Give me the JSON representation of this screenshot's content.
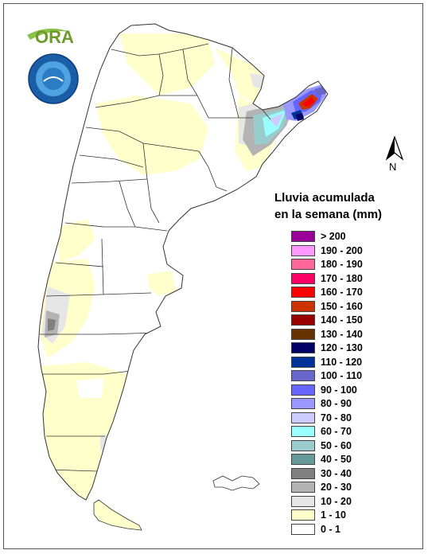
{
  "logos": {
    "ora_text": "ORA"
  },
  "north_label": "N",
  "legend": {
    "title_line1": "Lluvia acumulada",
    "title_line2": "en la semana (mm)",
    "classes": [
      {
        "label": "> 200",
        "color": "#990099"
      },
      {
        "label": "190 - 200",
        "color": "#ff99ff"
      },
      {
        "label": "180 - 190",
        "color": "#ff6699"
      },
      {
        "label": "170 - 180",
        "color": "#ff0066"
      },
      {
        "label": "160 - 170",
        "color": "#ff0000"
      },
      {
        "label": "150 - 160",
        "color": "#cc3300"
      },
      {
        "label": "140 - 150",
        "color": "#990000"
      },
      {
        "label": "130 - 140",
        "color": "#663300"
      },
      {
        "label": "120 - 130",
        "color": "#000066"
      },
      {
        "label": "110 - 120",
        "color": "#003399"
      },
      {
        "label": "100 - 110",
        "color": "#6666cc"
      },
      {
        "label": "90 - 100",
        "color": "#6666ff"
      },
      {
        "label": "80 - 90",
        "color": "#9999ff"
      },
      {
        "label": "70 - 80",
        "color": "#ccccff"
      },
      {
        "label": "60 - 70",
        "color": "#99ffff"
      },
      {
        "label": "50 - 60",
        "color": "#99cccc"
      },
      {
        "label": "40 - 50",
        "color": "#669999"
      },
      {
        "label": "30 - 40",
        "color": "#808080"
      },
      {
        "label": "20 - 30",
        "color": "#b3b3b3"
      },
      {
        "label": "10 - 20",
        "color": "#e6e6e6"
      },
      {
        "label": "1 - 10",
        "color": "#ffffcc"
      },
      {
        "label": "0 - 1",
        "color": "#ffffff"
      }
    ]
  }
}
